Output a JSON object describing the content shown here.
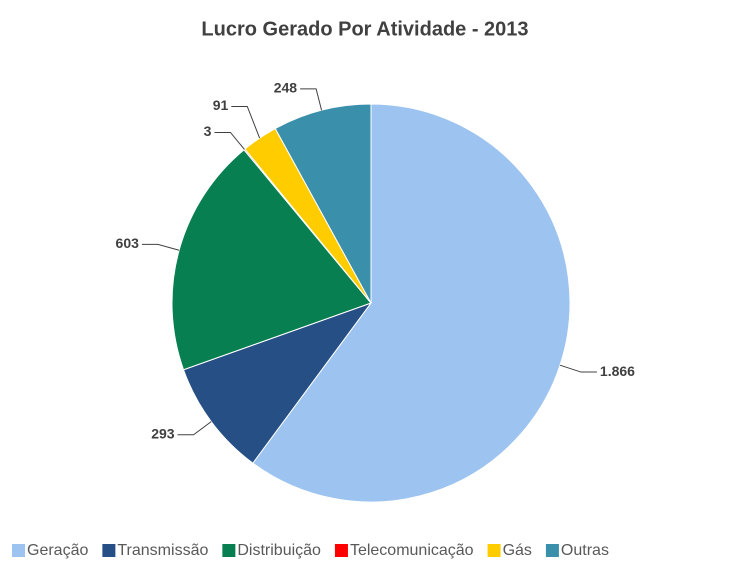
{
  "chart_data": {
    "type": "pie",
    "title": "Lucro Gerado Por Atividade - 2013",
    "categories": [
      "Geração",
      "Transmissão",
      "Distribuição",
      "Telecomunicação",
      "Gás",
      "Outras"
    ],
    "values": [
      1866,
      293,
      603,
      3,
      91,
      248
    ],
    "value_labels": [
      "1.866",
      "293",
      "603",
      "3",
      "91",
      "248"
    ],
    "colors": [
      "#9dc3f0",
      "#264f86",
      "#087f50",
      "#ff0000",
      "#ffcc00",
      "#3a8fab"
    ],
    "legend": "bottom"
  }
}
